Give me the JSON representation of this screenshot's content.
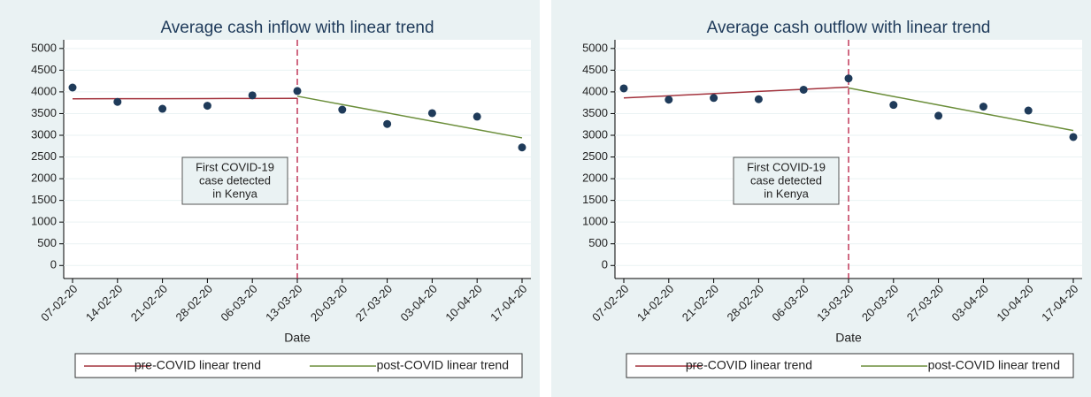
{
  "chart_data": [
    {
      "type": "scatter",
      "title": "Average cash inflow with linear trend",
      "x_label": "Date",
      "categories": [
        "07-02-20",
        "14-02-20",
        "21-02-20",
        "28-02-20",
        "06-03-20",
        "13-03-20",
        "20-03-20",
        "27-03-20",
        "03-04-20",
        "10-04-20",
        "17-04-20"
      ],
      "values": [
        4100,
        3770,
        3610,
        3680,
        3920,
        4020,
        3590,
        3260,
        3510,
        3430,
        2720
      ],
      "color": "#1f3b5a",
      "series": [
        {
          "name": "pre-COVID linear trend",
          "color": "#a3333d",
          "values": [
            3840,
            3842,
            3844,
            3846,
            3848,
            3850,
            null,
            null,
            null,
            null,
            null
          ]
        },
        {
          "name": "post-COVID linear trend",
          "color": "#6b8e3a",
          "values": [
            null,
            null,
            null,
            null,
            null,
            3900,
            3708,
            3516,
            3324,
            3132,
            2940
          ]
        }
      ],
      "annotation": [
        "First COVID-19",
        "case detected",
        "in Kenya"
      ],
      "ylim": [
        -300,
        5200
      ],
      "yticks": [
        0,
        500,
        1000,
        1500,
        2000,
        2500,
        3000,
        3500,
        4000,
        4500,
        5000
      ],
      "grid": true
    },
    {
      "type": "scatter",
      "title": "Average cash outflow with linear trend",
      "x_label": "Date",
      "categories": [
        "07-02-20",
        "14-02-20",
        "21-02-20",
        "28-02-20",
        "06-03-20",
        "13-03-20",
        "20-03-20",
        "27-03-20",
        "03-04-20",
        "10-04-20",
        "17-04-20"
      ],
      "values": [
        4080,
        3820,
        3860,
        3830,
        4050,
        4310,
        3700,
        3450,
        3660,
        3570,
        2960
      ],
      "color": "#1f3b5a",
      "series": [
        {
          "name": "pre-COVID linear trend",
          "color": "#a3333d",
          "values": [
            3860,
            3910,
            3960,
            4010,
            4060,
            4110,
            null,
            null,
            null,
            null,
            null
          ]
        },
        {
          "name": "post-COVID linear trend",
          "color": "#6b8e3a",
          "values": [
            null,
            null,
            null,
            null,
            null,
            4090,
            3894,
            3698,
            3502,
            3306,
            3110
          ]
        }
      ],
      "annotation": [
        "First COVID-19",
        "case detected",
        "in Kenya"
      ],
      "ylim": [
        -300,
        5200
      ],
      "yticks": [
        0,
        500,
        1000,
        1500,
        2000,
        2500,
        3000,
        3500,
        4000,
        4500,
        5000
      ],
      "grid": true
    }
  ]
}
